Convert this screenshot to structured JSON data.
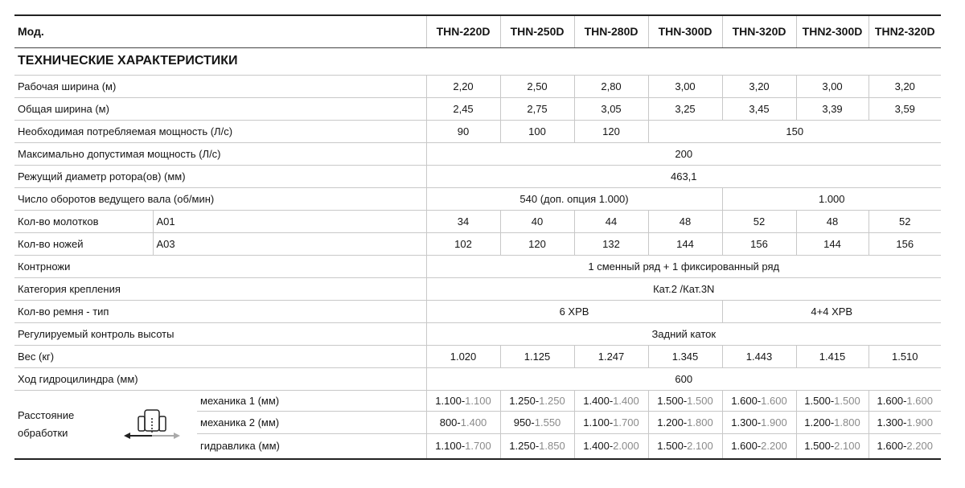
{
  "header": {
    "label": "Мод.",
    "models": [
      "THN-220D",
      "THN-250D",
      "THN-280D",
      "THN-300D",
      "THN-320D",
      "THN2-300D",
      "THN2-320D"
    ]
  },
  "section": "ТЕХНИЧЕСКИЕ ХАРАКТЕРИСТИКИ",
  "rows": [
    {
      "label": "Рабочая ширина (м)",
      "cells": [
        {
          "text": "2,20"
        },
        {
          "text": "2,50"
        },
        {
          "text": "2,80"
        },
        {
          "text": "3,00"
        },
        {
          "text": "3,20"
        },
        {
          "text": "3,00"
        },
        {
          "text": "3,20"
        }
      ]
    },
    {
      "label": "Общая ширина (м)",
      "cells": [
        {
          "text": "2,45"
        },
        {
          "text": "2,75"
        },
        {
          "text": "3,05"
        },
        {
          "text": "3,25"
        },
        {
          "text": "3,45"
        },
        {
          "text": "3,39"
        },
        {
          "text": "3,59"
        }
      ]
    },
    {
      "label": "Необходимая потребляемая мощность (Л/с)",
      "cells": [
        {
          "text": "90"
        },
        {
          "text": "100"
        },
        {
          "text": "120"
        },
        {
          "text": "150",
          "span": 4
        }
      ]
    },
    {
      "label": "Максимально допустимая мощность (Л/с)",
      "cells": [
        {
          "text": "200",
          "span": 7
        }
      ]
    },
    {
      "label": "Режущий диаметр ротора(ов) (мм)",
      "cells": [
        {
          "text": "463,1",
          "span": 7
        }
      ]
    },
    {
      "label": "Число оборотов ведущего вала (об/мин)",
      "cells": [
        {
          "text": "540 (доп. опция 1.000)",
          "span": 4
        },
        {
          "text": "1.000",
          "span": 3
        }
      ]
    },
    {
      "label": "Кол-во молотков",
      "sublabel": "A01",
      "cells": [
        {
          "text": "34"
        },
        {
          "text": "40"
        },
        {
          "text": "44"
        },
        {
          "text": "48"
        },
        {
          "text": "52"
        },
        {
          "text": "48"
        },
        {
          "text": "52"
        }
      ]
    },
    {
      "label": "Кол-во ножей",
      "sublabel": "A03",
      "cells": [
        {
          "text": "102"
        },
        {
          "text": "120"
        },
        {
          "text": "132"
        },
        {
          "text": "144"
        },
        {
          "text": "156"
        },
        {
          "text": "144"
        },
        {
          "text": "156"
        }
      ]
    },
    {
      "label": "Контрножи",
      "cells": [
        {
          "text": "1 сменный ряд + 1 фиксированный ряд",
          "span": 7
        }
      ]
    },
    {
      "label": "Категория крепления",
      "cells": [
        {
          "text": "Кат.2 /Кат.3N",
          "span": 7
        }
      ]
    },
    {
      "label": "Кол-во ремня - тип",
      "cells": [
        {
          "text": "6 XPB",
          "span": 4
        },
        {
          "text": "4+4 XPB",
          "span": 3
        }
      ]
    },
    {
      "label": "Регулируемый контроль высоты",
      "cells": [
        {
          "text": "Задний каток",
          "span": 7
        }
      ]
    },
    {
      "label": "Вес (кг)",
      "cells": [
        {
          "text": "1.020"
        },
        {
          "text": "1.125"
        },
        {
          "text": "1.247"
        },
        {
          "text": "1.345"
        },
        {
          "text": "1.443"
        },
        {
          "text": "1.415"
        },
        {
          "text": "1.510"
        }
      ]
    },
    {
      "label": "Ход гидроцилиндра (мм)",
      "cells": [
        {
          "text": "600",
          "span": 7
        }
      ]
    }
  ],
  "distance": {
    "label": "Расстояние обработки",
    "rows": [
      {
        "label": "механика 1 (мм)",
        "cells": [
          {
            "a": "1.100-",
            "b": "1.100"
          },
          {
            "a": "1.250-",
            "b": "1.250"
          },
          {
            "a": "1.400-",
            "b": "1.400"
          },
          {
            "a": "1.500-",
            "b": "1.500"
          },
          {
            "a": "1.600-",
            "b": "1.600"
          },
          {
            "a": "1.500-",
            "b": "1.500"
          },
          {
            "a": "1.600-",
            "b": "1.600"
          }
        ]
      },
      {
        "label": "механика 2 (мм)",
        "cells": [
          {
            "a": "800-",
            "b": "1.400"
          },
          {
            "a": "950-",
            "b": "1.550"
          },
          {
            "a": "1.100-",
            "b": "1.700"
          },
          {
            "a": "1.200-",
            "b": "1.800"
          },
          {
            "a": "1.300-",
            "b": "1.900"
          },
          {
            "a": "1.200-",
            "b": "1.800"
          },
          {
            "a": "1.300-",
            "b": "1.900"
          }
        ]
      },
      {
        "label": "гидравлика (мм)",
        "cells": [
          {
            "a": "1.100-",
            "b": "1.700"
          },
          {
            "a": "1.250-",
            "b": "1.850"
          },
          {
            "a": "1.400-",
            "b": "2.000"
          },
          {
            "a": "1.500-",
            "b": "2.100"
          },
          {
            "a": "1.600-",
            "b": "2.200"
          },
          {
            "a": "1.500-",
            "b": "2.100"
          },
          {
            "a": "1.600-",
            "b": "2.200"
          }
        ]
      }
    ]
  }
}
